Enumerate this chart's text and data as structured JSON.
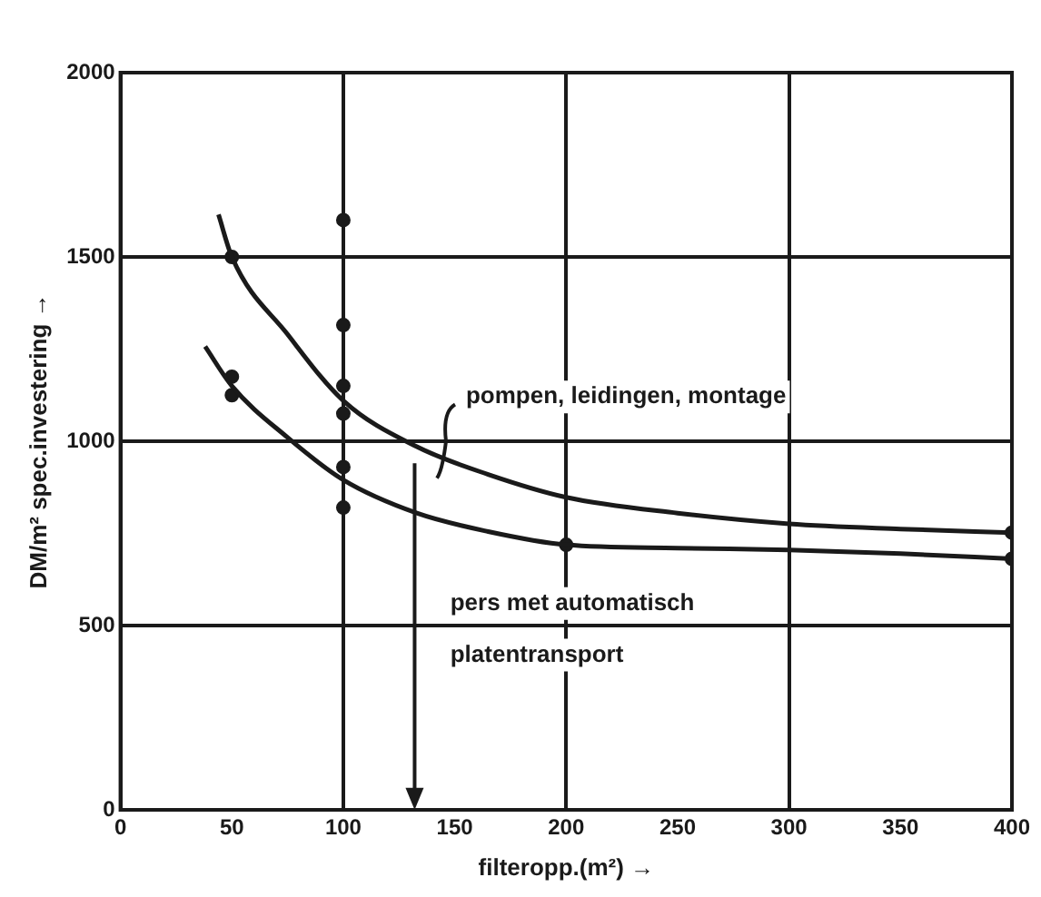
{
  "chart_data": {
    "type": "line",
    "xlabel": "filteropp.(m²) →",
    "ylabel": "DM/m² spec.investering →",
    "xlim": [
      0,
      400
    ],
    "xticks": [
      0,
      50,
      100,
      150,
      200,
      250,
      300,
      350,
      400
    ],
    "ylim": [
      0,
      2000
    ],
    "yticks": [
      0,
      500,
      1000,
      1500,
      2000
    ],
    "grid": true,
    "legend": false,
    "series": [
      {
        "marker": "none",
        "color": "#1a1a1a",
        "x": [
          44,
          50,
          75,
          100,
          133,
          165,
          200,
          250,
          300,
          350,
          400
        ],
        "values": [
          1615,
          1500,
          1290,
          1110,
          985,
          910,
          848,
          805,
          776,
          762,
          752
        ]
      },
      {
        "marker": "none",
        "color": "#1a1a1a",
        "x": [
          38,
          50,
          75,
          100,
          133,
          165,
          200,
          250,
          300,
          350,
          400
        ],
        "values": [
          1257,
          1150,
          1010,
          895,
          805,
          755,
          719,
          710,
          705,
          695,
          681
        ]
      },
      {
        "type": "scatter",
        "marker": "circle",
        "color": "#1a1a1a",
        "x": [
          50,
          50,
          50,
          100,
          100,
          100,
          100,
          100,
          100,
          200,
          400,
          400
        ],
        "values": [
          1500,
          1175,
          1125,
          1600,
          1315,
          1150,
          1075,
          930,
          820,
          719,
          752,
          681
        ]
      }
    ],
    "annotations": [
      "pompen, leidingen, montage",
      "pers met automatisch platentransport"
    ]
  }
}
